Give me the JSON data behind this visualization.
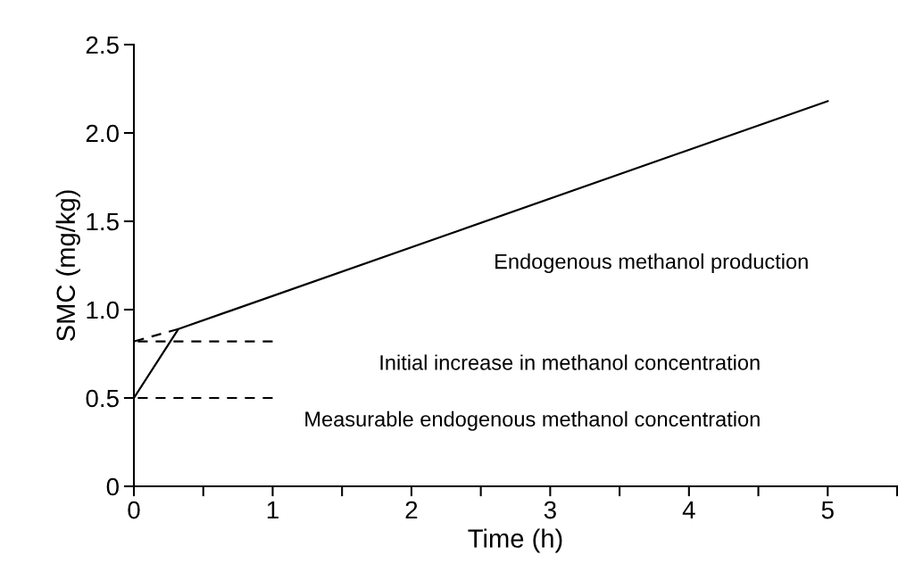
{
  "chart_data": {
    "type": "line",
    "xlabel": "Time (h)",
    "ylabel": "SMC (mg/kg)",
    "xlim": [
      0,
      5.5
    ],
    "ylim": [
      0,
      2.5
    ],
    "xticks": [
      0,
      {
        "value": 0.5,
        "label": null
      },
      1,
      {
        "value": 1.5,
        "label": null
      },
      2,
      {
        "value": 2.5,
        "label": null
      },
      3,
      {
        "value": 3.5,
        "label": null
      },
      4,
      {
        "value": 4.5,
        "label": null
      },
      5,
      {
        "value": 5.5,
        "label": null
      }
    ],
    "yticks": [
      0,
      0.5,
      {
        "value": 1,
        "label": "1.0"
      },
      1.5,
      {
        "value": 2,
        "label": "2.0"
      },
      2.5
    ],
    "grid": false,
    "marker": "none",
    "series": [
      {
        "color": "#000000",
        "x": [
          0,
          0.32,
          5
        ],
        "values": [
          0.5,
          0.89,
          2.18
        ],
        "line_style": "solid"
      },
      {
        "color": "#000000",
        "x": [
          0,
          0.32
        ],
        "values": [
          0.82,
          0.89
        ],
        "line_style": "dashed"
      },
      {
        "color": "#000000",
        "x": [
          0,
          1
        ],
        "values": [
          0.82,
          0.82
        ],
        "line_style": "dashed"
      },
      {
        "color": "#000000",
        "x": [
          0,
          1
        ],
        "values": [
          0.5,
          0.5
        ],
        "line_style": "dashed"
      }
    ],
    "annotations": [
      "Endogenous methanol production",
      "Initial increase in methanol concentration",
      "Measurable endogenous methanol concentration"
    ]
  }
}
